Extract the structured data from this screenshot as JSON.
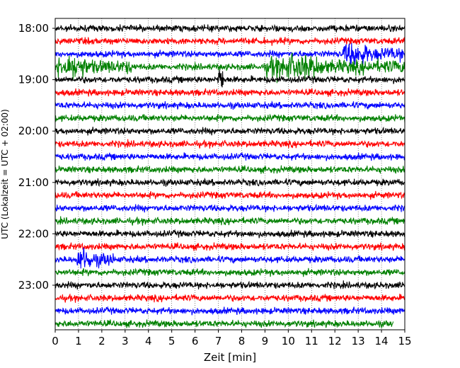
{
  "chart_data": {
    "type": "line",
    "subtype": "helicorder",
    "xlabel": "Zeit  [min]",
    "ylabel": "UTC (Lokalzeit = UTC + 02:00)",
    "xlim": [
      0,
      15
    ],
    "x_ticks": [
      0,
      1,
      2,
      3,
      4,
      5,
      6,
      7,
      8,
      9,
      10,
      11,
      12,
      13,
      14,
      15
    ],
    "y_tick_labels": [
      "18:00",
      "19:00",
      "20:00",
      "21:00",
      "22:00",
      "23:00"
    ],
    "row_interval_minutes": 15,
    "row_start_times": [
      "18:00",
      "18:15",
      "18:30",
      "18:45",
      "19:00",
      "19:15",
      "19:30",
      "19:45",
      "20:00",
      "20:15",
      "20:30",
      "20:45",
      "21:00",
      "21:15",
      "21:30",
      "21:45",
      "22:00",
      "22:15",
      "22:30",
      "22:45",
      "23:00",
      "23:15",
      "23:30",
      "23:45"
    ],
    "color_cycle": [
      "#000000",
      "#ff0000",
      "#0000ff",
      "#008000"
    ],
    "last_trace_end_minute": 14.5,
    "grid": "vertical dotted lines at each minute",
    "events": [
      {
        "row": "18:45",
        "x_range": [
          0,
          3.3
        ],
        "description": "strong oscillation"
      },
      {
        "row": "18:45",
        "x_range": [
          9,
          15
        ],
        "description": "elevated noise"
      },
      {
        "row": "18:30",
        "x_range": [
          12.3,
          15
        ],
        "description": "elevated noise"
      },
      {
        "row": "19:00",
        "x": 7.1,
        "description": "spike"
      },
      {
        "row": "22:30",
        "x_range": [
          0.9,
          2.5
        ],
        "description": "burst"
      }
    ]
  }
}
